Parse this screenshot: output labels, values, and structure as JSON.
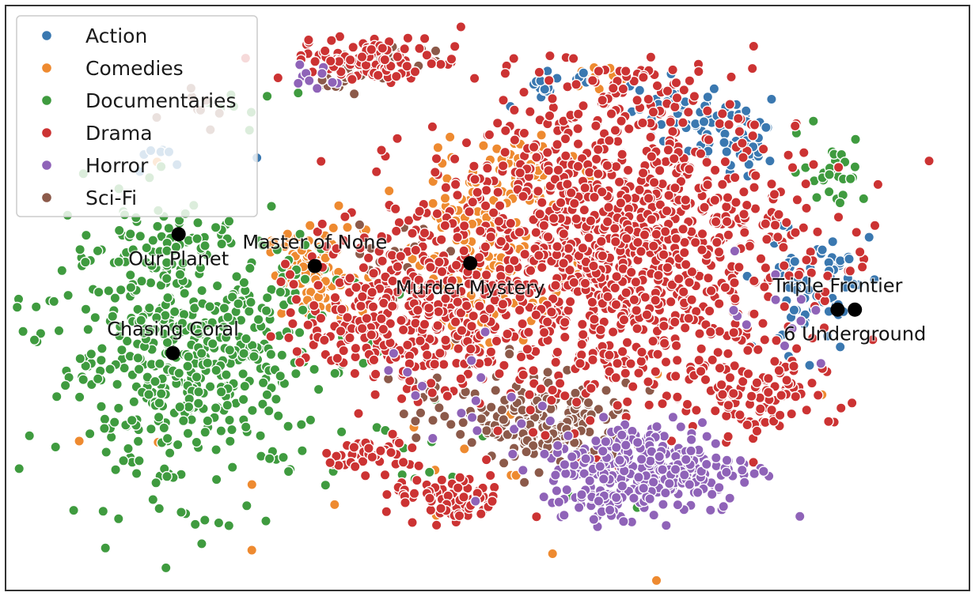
{
  "chart_data": {
    "type": "scatter",
    "title": "",
    "xlabel": "",
    "ylabel": "",
    "xlim": [
      0,
      100
    ],
    "ylim": [
      0,
      100
    ],
    "grid": false,
    "legend_position": "top-left",
    "series": [
      {
        "name": "Action",
        "color": "#3a78b0",
        "clusters": [
          {
            "cx": 57,
            "cy": 86,
            "sx": 2.2,
            "sy": 1.5,
            "n": 20
          },
          {
            "cx": 70,
            "cy": 83,
            "sx": 3.0,
            "sy": 2.0,
            "n": 40
          },
          {
            "cx": 76,
            "cy": 76,
            "sx": 3.0,
            "sy": 2.5,
            "n": 45
          },
          {
            "cx": 84,
            "cy": 52,
            "sx": 3.0,
            "sy": 6.0,
            "n": 70
          },
          {
            "cx": 17,
            "cy": 74,
            "sx": 2.5,
            "sy": 2.0,
            "n": 8
          }
        ]
      },
      {
        "name": "Comedies",
        "color": "#ee8a30",
        "clusters": [
          {
            "cx": 32,
            "cy": 54,
            "sx": 2.5,
            "sy": 4.0,
            "n": 90
          },
          {
            "cx": 50,
            "cy": 60,
            "sx": 4.0,
            "sy": 9.0,
            "n": 160
          },
          {
            "cx": 53,
            "cy": 71,
            "sx": 3.0,
            "sy": 3.0,
            "n": 40
          },
          {
            "cx": 62,
            "cy": 88,
            "sx": 1.5,
            "sy": 1.5,
            "n": 12
          },
          {
            "cx": 40,
            "cy": 30,
            "sx": 20.0,
            "sy": 16.0,
            "n": 30
          }
        ]
      },
      {
        "name": "Documentaries",
        "color": "#3f9b3f",
        "clusters": [
          {
            "cx": 19,
            "cy": 40,
            "sx": 7.5,
            "sy": 11.0,
            "n": 520
          },
          {
            "cx": 17,
            "cy": 60,
            "sx": 3.5,
            "sy": 3.5,
            "n": 40
          },
          {
            "cx": 86,
            "cy": 72,
            "sx": 1.8,
            "sy": 3.0,
            "n": 30
          },
          {
            "cx": 25,
            "cy": 84,
            "sx": 2.5,
            "sy": 1.5,
            "n": 8
          },
          {
            "cx": 17,
            "cy": 19,
            "sx": 1.0,
            "sy": 1.0,
            "n": 6
          },
          {
            "cx": 40,
            "cy": 25,
            "sx": 15.0,
            "sy": 10.0,
            "n": 15
          }
        ]
      },
      {
        "name": "Drama",
        "color": "#cc3333",
        "clusters": [
          {
            "cx": 63,
            "cy": 58,
            "sx": 10.0,
            "sy": 13.0,
            "n": 1200
          },
          {
            "cx": 41,
            "cy": 48,
            "sx": 5.0,
            "sy": 7.0,
            "n": 320
          },
          {
            "cx": 38,
            "cy": 91,
            "sx": 4.5,
            "sy": 1.8,
            "n": 110
          },
          {
            "cx": 38,
            "cy": 23,
            "sx": 2.5,
            "sy": 1.5,
            "n": 45
          },
          {
            "cx": 46,
            "cy": 15,
            "sx": 3.0,
            "sy": 2.0,
            "n": 80
          },
          {
            "cx": 78,
            "cy": 33,
            "sx": 3.5,
            "sy": 4.0,
            "n": 90
          },
          {
            "cx": 64,
            "cy": 83,
            "sx": 4.0,
            "sy": 3.0,
            "n": 60
          }
        ]
      },
      {
        "name": "Horror",
        "color": "#8f63b8",
        "clusters": [
          {
            "cx": 67,
            "cy": 21,
            "sx": 5.5,
            "sy": 4.0,
            "n": 280
          },
          {
            "cx": 63,
            "cy": 16,
            "sx": 2.5,
            "sy": 2.0,
            "n": 40
          },
          {
            "cx": 32,
            "cy": 88,
            "sx": 1.5,
            "sy": 1.2,
            "n": 10
          },
          {
            "cx": 80,
            "cy": 45,
            "sx": 3.0,
            "sy": 6.0,
            "n": 12
          },
          {
            "cx": 45,
            "cy": 35,
            "sx": 8.0,
            "sy": 6.0,
            "n": 15
          }
        ]
      },
      {
        "name": "Sci-Fi",
        "color": "#8c5a4a",
        "clusters": [
          {
            "cx": 57,
            "cy": 28,
            "sx": 4.0,
            "sy": 3.5,
            "n": 180
          },
          {
            "cx": 35,
            "cy": 88,
            "sx": 1.5,
            "sy": 1.5,
            "n": 20
          },
          {
            "cx": 40,
            "cy": 92,
            "sx": 3.0,
            "sy": 1.0,
            "n": 15
          },
          {
            "cx": 40,
            "cy": 57,
            "sx": 3.0,
            "sy": 3.0,
            "n": 20
          },
          {
            "cx": 47,
            "cy": 33,
            "sx": 4.0,
            "sy": 4.0,
            "n": 30
          },
          {
            "cx": 20,
            "cy": 82,
            "sx": 2.0,
            "sy": 2.0,
            "n": 8
          }
        ]
      }
    ],
    "highlighted_titles": [
      {
        "label": "Master of None",
        "x": 32,
        "y": 55.5,
        "label_side": "above"
      },
      {
        "label": "Our Planet",
        "x": 17.8,
        "y": 61,
        "label_side": "below"
      },
      {
        "label": "Murder Mystery",
        "x": 48.2,
        "y": 56,
        "label_side": "below"
      },
      {
        "label": "Chasing Coral",
        "x": 17.2,
        "y": 40.5,
        "label_side": "above"
      },
      {
        "label": "Triple Frontier",
        "x": 86.5,
        "y": 48,
        "label_side": "above"
      },
      {
        "label": "6 Underground",
        "x": 88.3,
        "y": 48,
        "label_side": "below"
      }
    ]
  }
}
